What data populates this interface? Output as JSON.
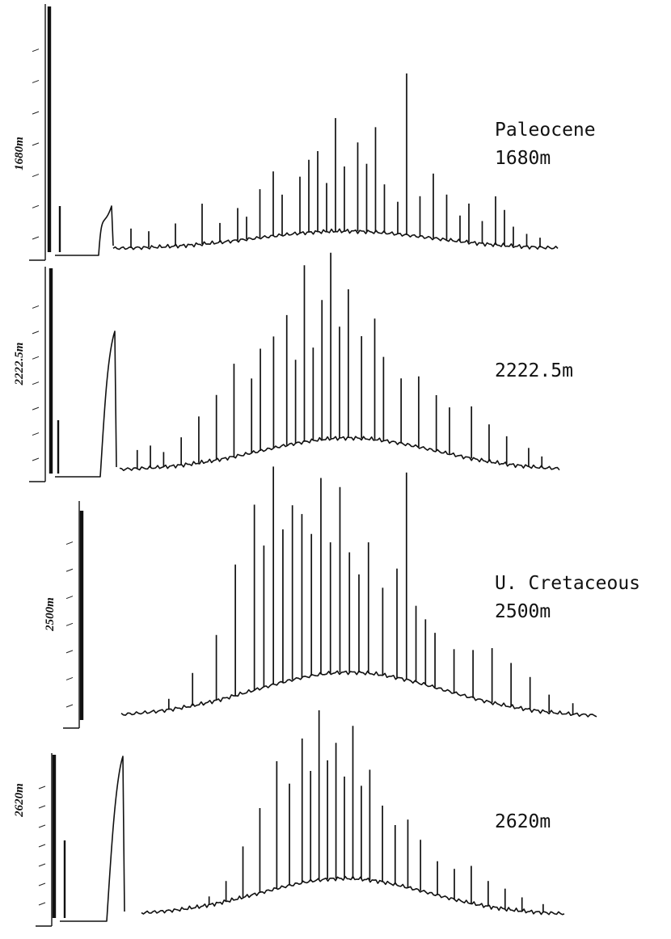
{
  "chart_data": [
    {
      "type": "line",
      "side_label": "1680m",
      "labels": [
        "Paleocene",
        "1680m"
      ],
      "x": [
        0.04,
        0.08,
        0.14,
        0.2,
        0.24,
        0.28,
        0.3,
        0.33,
        0.36,
        0.38,
        0.42,
        0.44,
        0.46,
        0.48,
        0.5,
        0.52,
        0.55,
        0.57,
        0.59,
        0.61,
        0.64,
        0.66,
        0.69,
        0.72,
        0.75,
        0.78,
        0.8,
        0.83,
        0.86,
        0.88,
        0.9,
        0.93,
        0.96
      ],
      "y": [
        0.12,
        0.1,
        0.14,
        0.25,
        0.12,
        0.2,
        0.14,
        0.3,
        0.4,
        0.25,
        0.35,
        0.45,
        0.5,
        0.3,
        0.7,
        0.4,
        0.55,
        0.42,
        0.65,
        0.3,
        0.2,
        1.0,
        0.25,
        0.4,
        0.28,
        0.16,
        0.24,
        0.14,
        0.3,
        0.22,
        0.12,
        0.08,
        0.06
      ]
    },
    {
      "type": "line",
      "side_label": "2222.5m",
      "labels": [
        "2222.5m"
      ],
      "x": [
        0.04,
        0.07,
        0.1,
        0.14,
        0.18,
        0.22,
        0.26,
        0.3,
        0.32,
        0.35,
        0.38,
        0.4,
        0.42,
        0.44,
        0.46,
        0.48,
        0.5,
        0.52,
        0.55,
        0.58,
        0.6,
        0.64,
        0.68,
        0.72,
        0.75,
        0.8,
        0.84,
        0.88,
        0.93,
        0.96
      ],
      "y": [
        0.1,
        0.12,
        0.08,
        0.15,
        0.25,
        0.35,
        0.5,
        0.4,
        0.55,
        0.6,
        0.7,
        0.45,
        0.95,
        0.5,
        0.75,
        1.0,
        0.6,
        0.8,
        0.55,
        0.65,
        0.45,
        0.35,
        0.38,
        0.3,
        0.25,
        0.28,
        0.2,
        0.15,
        0.1,
        0.06
      ]
    },
    {
      "type": "line",
      "side_label": "2500m",
      "labels": [
        "U. Cretaceous",
        "2500m"
      ],
      "x": [
        0.1,
        0.15,
        0.2,
        0.24,
        0.28,
        0.3,
        0.32,
        0.34,
        0.36,
        0.38,
        0.4,
        0.42,
        0.44,
        0.46,
        0.48,
        0.5,
        0.52,
        0.55,
        0.58,
        0.6,
        0.62,
        0.64,
        0.66,
        0.7,
        0.74,
        0.78,
        0.82,
        0.86,
        0.9,
        0.95
      ],
      "y": [
        0.05,
        0.15,
        0.3,
        0.6,
        0.85,
        0.65,
        1.0,
        0.7,
        0.8,
        0.75,
        0.65,
        0.9,
        0.6,
        0.85,
        0.55,
        0.45,
        0.6,
        0.4,
        0.5,
        0.95,
        0.35,
        0.3,
        0.25,
        0.2,
        0.22,
        0.25,
        0.2,
        0.15,
        0.08,
        0.05
      ]
    },
    {
      "type": "line",
      "side_label": "2620m",
      "labels": [
        "2620m"
      ],
      "x": [
        0.16,
        0.2,
        0.24,
        0.28,
        0.32,
        0.35,
        0.38,
        0.4,
        0.42,
        0.44,
        0.46,
        0.48,
        0.5,
        0.52,
        0.54,
        0.57,
        0.6,
        0.63,
        0.66,
        0.7,
        0.74,
        0.78,
        0.82,
        0.86,
        0.9,
        0.95
      ],
      "y": [
        0.05,
        0.12,
        0.3,
        0.5,
        0.75,
        0.6,
        0.85,
        0.65,
        1.0,
        0.7,
        0.8,
        0.6,
        0.9,
        0.55,
        0.65,
        0.45,
        0.35,
        0.4,
        0.3,
        0.2,
        0.18,
        0.22,
        0.15,
        0.12,
        0.08,
        0.05
      ]
    }
  ]
}
